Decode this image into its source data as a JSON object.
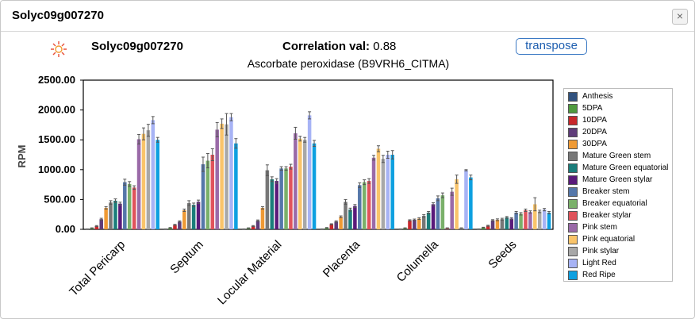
{
  "dialog": {
    "title": "Solyc09g007270",
    "close_label": "×"
  },
  "header": {
    "gene_name": "Solyc09g007270",
    "correlation_label": "Correlation val:",
    "correlation_value": "0.88",
    "transpose_label": "transpose",
    "logo_icon": "sun-logo-icon"
  },
  "chart_data": {
    "type": "bar",
    "title": "Ascorbate peroxidase (B9VRH6_CITMA)",
    "ylabel": "RPM",
    "xlabel": "",
    "ylim": [
      0,
      2500
    ],
    "yticks": [
      "0.00",
      "500.00",
      "1000.00",
      "1500.00",
      "2000.00",
      "2500.00"
    ],
    "categories": [
      "Total Pericarp",
      "Septum",
      "Locular Material",
      "Placenta",
      "Columella",
      "Seeds"
    ],
    "legend_position": "right",
    "series": [
      {
        "name": "Anthesis",
        "color": "#31527f",
        "values": [
          5,
          5,
          5,
          5,
          5,
          5
        ],
        "errors": [
          2,
          2,
          2,
          2,
          2,
          2
        ]
      },
      {
        "name": "5DPA",
        "color": "#4f9a3e",
        "values": [
          20,
          25,
          20,
          25,
          20,
          30
        ],
        "errors": [
          5,
          5,
          5,
          5,
          5,
          5
        ]
      },
      {
        "name": "10DPA",
        "color": "#c8272b",
        "values": [
          55,
          75,
          55,
          85,
          150,
          60
        ],
        "errors": [
          8,
          8,
          8,
          8,
          10,
          8
        ]
      },
      {
        "name": "20DPA",
        "color": "#5e3c79",
        "values": [
          170,
          130,
          145,
          130,
          160,
          150
        ],
        "errors": [
          15,
          12,
          12,
          12,
          12,
          12
        ]
      },
      {
        "name": "30DPA",
        "color": "#ef9a35",
        "values": [
          360,
          320,
          360,
          210,
          180,
          160
        ],
        "errors": [
          20,
          20,
          20,
          15,
          15,
          15
        ]
      },
      {
        "name": "Mature Green stem",
        "color": "#777777",
        "values": [
          450,
          440,
          990,
          460,
          225,
          170
        ],
        "errors": [
          30,
          40,
          90,
          40,
          20,
          15
        ]
      },
      {
        "name": "Mature Green equatorial",
        "color": "#1a7d7a",
        "values": [
          480,
          410,
          840,
          330,
          280,
          200
        ],
        "errors": [
          30,
          30,
          40,
          25,
          20,
          15
        ]
      },
      {
        "name": "Mature Green stylar",
        "color": "#5a1a7a",
        "values": [
          430,
          460,
          810,
          390,
          420,
          180
        ],
        "errors": [
          25,
          30,
          40,
          25,
          25,
          15
        ]
      },
      {
        "name": "Breaker stem",
        "color": "#5577aa",
        "values": [
          790,
          1090,
          1020,
          740,
          520,
          280
        ],
        "errors": [
          50,
          120,
          30,
          40,
          40,
          20
        ]
      },
      {
        "name": "Breaker equatorial",
        "color": "#7ab06a",
        "values": [
          760,
          1150,
          1020,
          790,
          570,
          260
        ],
        "errors": [
          40,
          120,
          30,
          40,
          40,
          20
        ]
      },
      {
        "name": "Breaker stylar",
        "color": "#e0535b",
        "values": [
          700,
          1250,
          1050,
          810,
          20,
          320
        ],
        "errors": [
          30,
          100,
          40,
          40,
          5,
          20
        ]
      },
      {
        "name": "Pink stem",
        "color": "#9a6aa8",
        "values": [
          1510,
          1670,
          1610,
          1200,
          630,
          290
        ],
        "errors": [
          80,
          120,
          100,
          40,
          60,
          20
        ]
      },
      {
        "name": "Pink equatorial",
        "color": "#f9c46a",
        "values": [
          1600,
          1770,
          1520,
          1350,
          840,
          420
        ],
        "errors": [
          100,
          80,
          40,
          50,
          70,
          110
        ]
      },
      {
        "name": "Pink stylar",
        "color": "#a8a8a8",
        "values": [
          1660,
          1760,
          1500,
          1180,
          20,
          300
        ],
        "errors": [
          100,
          180,
          40,
          60,
          5,
          20
        ]
      },
      {
        "name": "Light Red",
        "color": "#a7b3f5",
        "values": [
          1830,
          1880,
          1910,
          1250,
          990,
          330
        ],
        "errors": [
          60,
          60,
          60,
          60,
          10,
          20
        ]
      },
      {
        "name": "Red Ripe",
        "color": "#0ea0e0",
        "values": [
          1500,
          1440,
          1440,
          1250,
          870,
          280
        ],
        "errors": [
          40,
          80,
          50,
          70,
          40,
          20
        ]
      }
    ]
  }
}
